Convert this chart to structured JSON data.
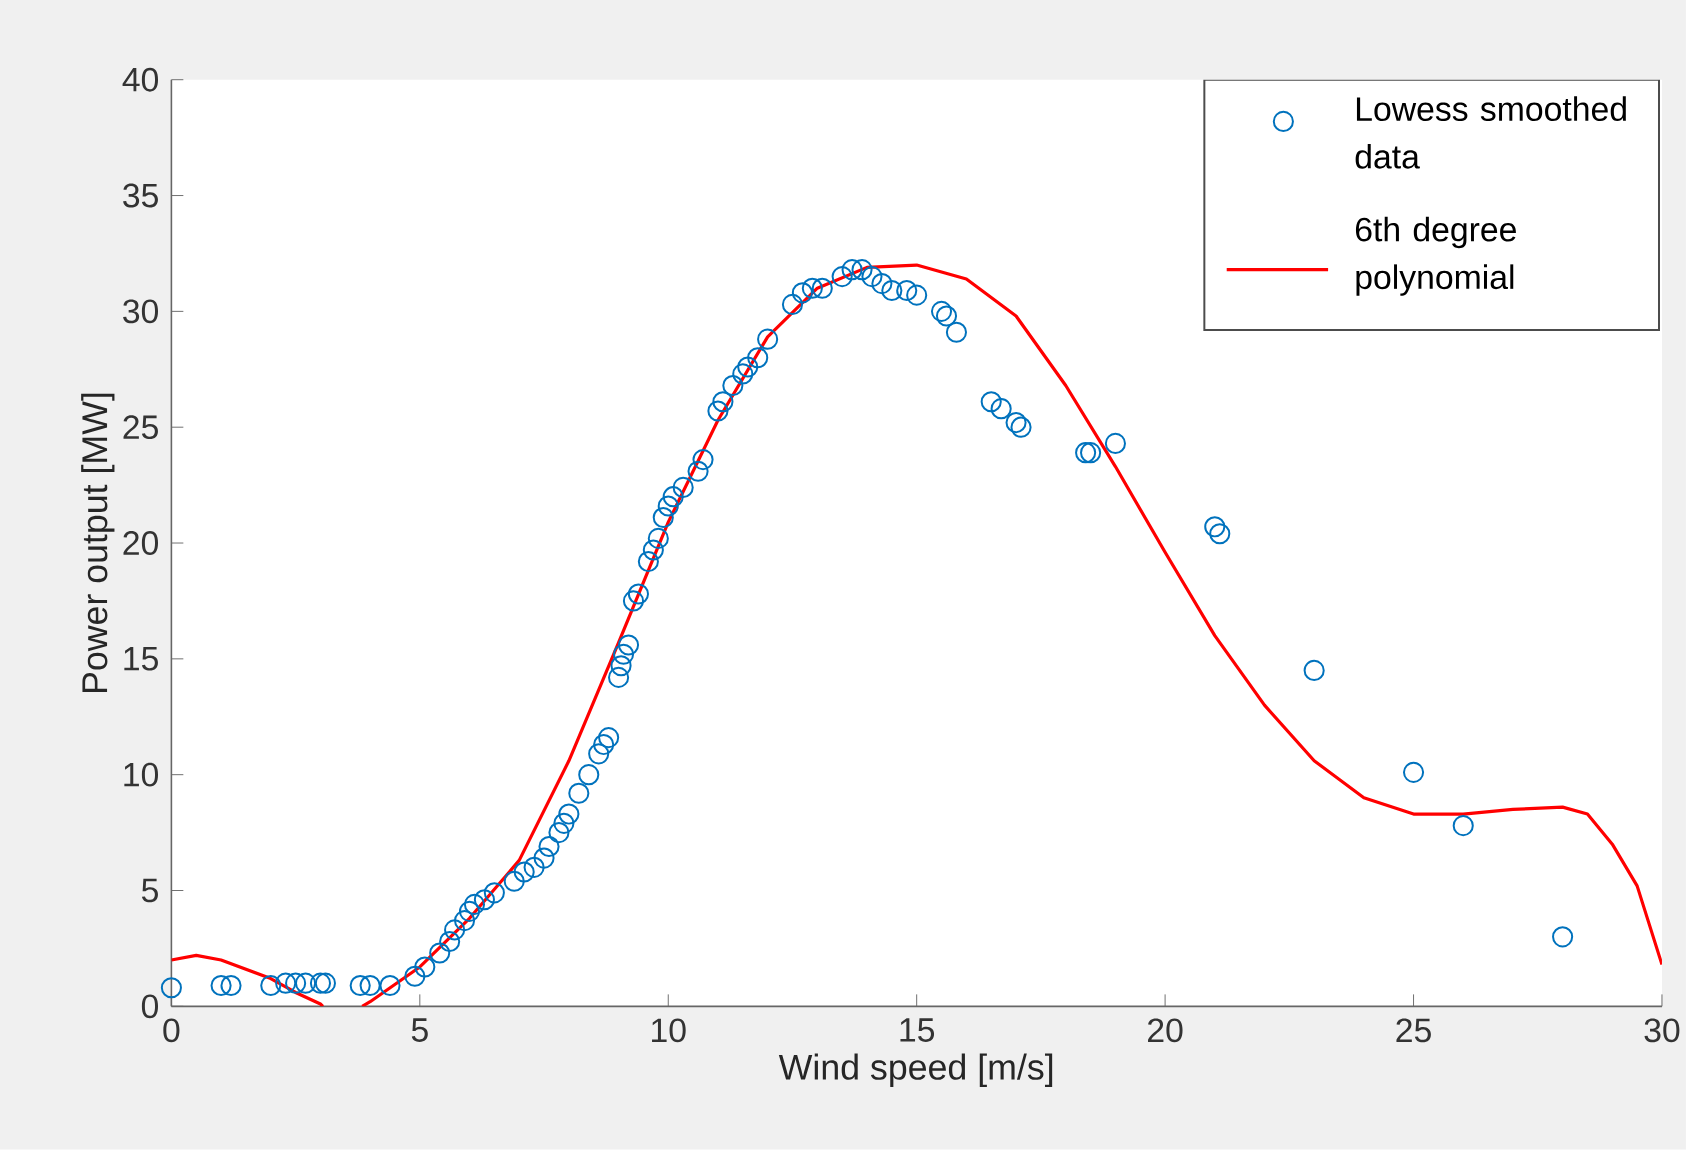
{
  "chart_data": {
    "type": "scatter",
    "xlabel": "Wind speed [m/s]",
    "ylabel": "Power output [MW]",
    "xlim": [
      0,
      30
    ],
    "ylim": [
      0,
      40
    ],
    "xticks": [
      0,
      5,
      10,
      15,
      20,
      25,
      30
    ],
    "yticks": [
      0,
      5,
      10,
      15,
      20,
      25,
      30,
      35,
      40
    ],
    "grid": false,
    "legend": "top right",
    "series": [
      {
        "name": "Lowess smoothed data",
        "type": "scatter",
        "marker": "circle",
        "color": "#0072bd",
        "x": [
          0,
          1,
          1.2,
          2,
          2.3,
          2.5,
          2.7,
          3,
          3.1,
          3.8,
          4,
          4.4,
          4.9,
          5.1,
          5.4,
          5.6,
          5.7,
          5.9,
          6,
          6.1,
          6.3,
          6.5,
          6.9,
          7.1,
          7.3,
          7.5,
          7.6,
          7.8,
          7.9,
          8,
          8.2,
          8.4,
          8.6,
          8.7,
          8.8,
          9,
          9.05,
          9.1,
          9.2,
          9.3,
          9.4,
          9.6,
          9.7,
          9.8,
          9.9,
          10,
          10.1,
          10.3,
          10.6,
          10.7,
          11,
          11.1,
          11.3,
          11.5,
          11.6,
          11.8,
          12,
          12.5,
          12.7,
          12.9,
          13.1,
          13.5,
          13.7,
          13.9,
          14.1,
          14.3,
          14.5,
          14.8,
          15,
          15.5,
          15.6,
          15.8,
          16.5,
          16.7,
          17,
          17.1,
          18.4,
          18.5,
          19,
          21,
          21.1,
          23,
          25,
          26,
          28
        ],
        "values": [
          0.8,
          0.9,
          0.9,
          0.9,
          1.0,
          1.0,
          1.0,
          1.0,
          1.0,
          0.9,
          0.9,
          0.9,
          1.3,
          1.7,
          2.3,
          2.8,
          3.3,
          3.7,
          4.1,
          4.4,
          4.6,
          4.9,
          5.4,
          5.8,
          6.0,
          6.4,
          6.9,
          7.5,
          7.9,
          8.3,
          9.2,
          10.0,
          10.9,
          11.3,
          11.6,
          14.2,
          14.7,
          15.2,
          15.6,
          17.5,
          17.8,
          19.2,
          19.7,
          20.2,
          21.1,
          21.6,
          22.0,
          22.4,
          23.1,
          23.6,
          25.7,
          26.1,
          26.8,
          27.3,
          27.6,
          28.0,
          28.8,
          30.3,
          30.8,
          31.0,
          31.0,
          31.5,
          31.8,
          31.8,
          31.5,
          31.2,
          30.9,
          30.9,
          30.7,
          30.0,
          29.8,
          29.1,
          26.1,
          25.8,
          25.2,
          25.0,
          23.9,
          23.9,
          24.3,
          20.7,
          20.4,
          14.5,
          10.1,
          7.8,
          3.0
        ]
      },
      {
        "name": "6th degree polynomial",
        "type": "line",
        "marker": "none",
        "line_style": "solid",
        "color": "#ff0000",
        "x": [
          0,
          0.5,
          1,
          2,
          2.5,
          3,
          3.05,
          3.5,
          3.84,
          4,
          5,
          6,
          7,
          8,
          9,
          10,
          11,
          12,
          13,
          14,
          15,
          16,
          17,
          18,
          19,
          20,
          21,
          22,
          23,
          24,
          25,
          26,
          27,
          28,
          28.5,
          29,
          29.5,
          30
        ],
        "values": [
          2.0,
          2.2,
          2.0,
          1.2,
          0.6,
          0.1,
          0.0,
          null,
          0.0,
          0.2,
          1.7,
          3.8,
          6.3,
          10.6,
          15.7,
          20.9,
          25.3,
          28.9,
          31.0,
          31.9,
          32.0,
          31.4,
          29.8,
          26.8,
          23.3,
          19.6,
          16.0,
          13.0,
          10.6,
          9.0,
          8.3,
          8.3,
          8.5,
          8.6,
          8.3,
          7.0,
          5.2,
          1.8
        ]
      }
    ]
  }
}
